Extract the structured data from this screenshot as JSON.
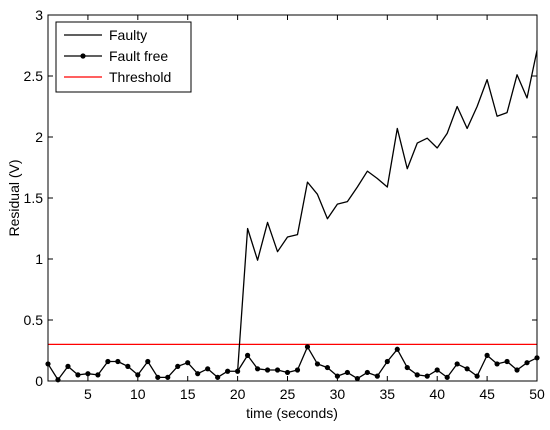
{
  "chart_data": {
    "type": "line",
    "title": "",
    "xlabel": "time (seconds)",
    "ylabel": "Residual (V)",
    "xlim": [
      1,
      50
    ],
    "ylim": [
      0,
      3
    ],
    "xticks": [
      5,
      10,
      15,
      20,
      25,
      30,
      35,
      40,
      45,
      50
    ],
    "yticks": [
      0,
      0.5,
      1,
      1.5,
      2,
      2.5,
      3
    ],
    "ytick_labels": [
      "0",
      "0.5",
      "1",
      "1.5",
      "2",
      "2.5",
      "3"
    ],
    "grid": false,
    "legend_position": "top-left",
    "series": [
      {
        "name": "Faulty",
        "color": "#000000",
        "marker": "none",
        "x": [
          20,
          21,
          22,
          23,
          24,
          25,
          26,
          27,
          28,
          29,
          30,
          31,
          32,
          33,
          34,
          35,
          36,
          37,
          38,
          39,
          40,
          41,
          42,
          43,
          44,
          45,
          46,
          47,
          48,
          49,
          50
        ],
        "y": [
          0.08,
          1.25,
          0.99,
          1.3,
          1.06,
          1.18,
          1.2,
          1.63,
          1.53,
          1.33,
          1.45,
          1.47,
          1.59,
          1.72,
          1.66,
          1.59,
          2.07,
          1.74,
          1.95,
          1.99,
          1.91,
          2.03,
          2.25,
          2.07,
          2.25,
          2.47,
          2.17,
          2.2,
          2.51,
          2.32,
          2.71
        ]
      },
      {
        "name": "Fault free",
        "color": "#000000",
        "marker": "circle",
        "x": [
          1,
          2,
          3,
          4,
          5,
          6,
          7,
          8,
          9,
          10,
          11,
          12,
          13,
          14,
          15,
          16,
          17,
          18,
          19,
          20,
          21,
          22,
          23,
          24,
          25,
          26,
          27,
          28,
          29,
          30,
          31,
          32,
          33,
          34,
          35,
          36,
          37,
          38,
          39,
          40,
          41,
          42,
          43,
          44,
          45,
          46,
          47,
          48,
          49,
          50
        ],
        "y": [
          0.14,
          0.01,
          0.12,
          0.05,
          0.06,
          0.05,
          0.16,
          0.16,
          0.12,
          0.05,
          0.16,
          0.03,
          0.03,
          0.12,
          0.15,
          0.06,
          0.1,
          0.03,
          0.08,
          0.08,
          0.21,
          0.1,
          0.09,
          0.09,
          0.07,
          0.09,
          0.28,
          0.14,
          0.11,
          0.04,
          0.07,
          0.02,
          0.07,
          0.04,
          0.16,
          0.26,
          0.11,
          0.05,
          0.04,
          0.09,
          0.03,
          0.14,
          0.1,
          0.04,
          0.21,
          0.14,
          0.16,
          0.09,
          0.15,
          0.19
        ]
      },
      {
        "name": "Threshold",
        "color": "#ff0000",
        "marker": "none",
        "x": [
          1,
          50
        ],
        "y": [
          0.3,
          0.3
        ]
      }
    ]
  }
}
